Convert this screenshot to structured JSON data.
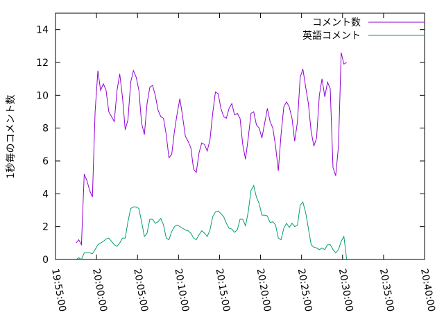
{
  "chart_data": {
    "type": "line",
    "ylabel": "1秒毎のコメント数",
    "ylim": [
      0,
      15
    ],
    "yticks": [
      0,
      2,
      4,
      6,
      8,
      10,
      12,
      14
    ],
    "xlim": [
      "19:55:00",
      "20:40:00"
    ],
    "xticks": [
      "19:55:00",
      "20:00:00",
      "20:05:00",
      "20:10:00",
      "20:15:00",
      "20:20:00",
      "20:25:00",
      "20:30:00",
      "20:35:00",
      "20:40:00"
    ],
    "legend_position": "top-right",
    "grid": false,
    "series": [
      {
        "name": "コメント数",
        "color": "#9400d3",
        "points": [
          [
            "19:57:30",
            1.0
          ],
          [
            "19:57:50",
            1.2
          ],
          [
            "19:58:10",
            0.9
          ],
          [
            "19:58:30",
            5.2
          ],
          [
            "19:58:50",
            4.8
          ],
          [
            "19:59:10",
            4.2
          ],
          [
            "19:59:30",
            3.8
          ],
          [
            "19:59:50",
            9.0
          ],
          [
            "20:00:10",
            11.5
          ],
          [
            "20:00:30",
            10.3
          ],
          [
            "20:00:50",
            10.7
          ],
          [
            "20:01:10",
            10.3
          ],
          [
            "20:01:30",
            9.0
          ],
          [
            "20:01:50",
            8.7
          ],
          [
            "20:02:10",
            8.4
          ],
          [
            "20:02:30",
            10.3
          ],
          [
            "20:02:50",
            11.3
          ],
          [
            "20:03:10",
            9.9
          ],
          [
            "20:03:30",
            7.9
          ],
          [
            "20:03:50",
            8.5
          ],
          [
            "20:04:10",
            10.8
          ],
          [
            "20:04:30",
            11.5
          ],
          [
            "20:04:50",
            11.1
          ],
          [
            "20:05:10",
            10.3
          ],
          [
            "20:05:30",
            8.3
          ],
          [
            "20:05:50",
            7.6
          ],
          [
            "20:06:10",
            9.5
          ],
          [
            "20:06:30",
            10.5
          ],
          [
            "20:06:50",
            10.6
          ],
          [
            "20:07:10",
            10.0
          ],
          [
            "20:07:30",
            9.1
          ],
          [
            "20:07:50",
            8.7
          ],
          [
            "20:08:10",
            8.6
          ],
          [
            "20:08:30",
            7.6
          ],
          [
            "20:08:50",
            6.2
          ],
          [
            "20:09:10",
            6.4
          ],
          [
            "20:09:30",
            7.8
          ],
          [
            "20:09:50",
            8.9
          ],
          [
            "20:10:10",
            9.8
          ],
          [
            "20:10:30",
            8.7
          ],
          [
            "20:10:50",
            7.5
          ],
          [
            "20:11:10",
            7.2
          ],
          [
            "20:11:30",
            6.8
          ],
          [
            "20:11:50",
            5.5
          ],
          [
            "20:12:10",
            5.3
          ],
          [
            "20:12:30",
            6.5
          ],
          [
            "20:12:50",
            7.1
          ],
          [
            "20:13:10",
            7.0
          ],
          [
            "20:13:30",
            6.6
          ],
          [
            "20:13:50",
            7.3
          ],
          [
            "20:14:10",
            8.9
          ],
          [
            "20:14:30",
            10.2
          ],
          [
            "20:14:50",
            10.1
          ],
          [
            "20:15:10",
            9.2
          ],
          [
            "20:15:30",
            8.7
          ],
          [
            "20:15:50",
            8.6
          ],
          [
            "20:16:10",
            9.2
          ],
          [
            "20:16:30",
            9.5
          ],
          [
            "20:16:50",
            8.8
          ],
          [
            "20:17:10",
            8.9
          ],
          [
            "20:17:30",
            8.6
          ],
          [
            "20:17:50",
            7.0
          ],
          [
            "20:18:10",
            6.1
          ],
          [
            "20:18:30",
            7.4
          ],
          [
            "20:18:50",
            8.9
          ],
          [
            "20:19:10",
            9.0
          ],
          [
            "20:19:30",
            8.2
          ],
          [
            "20:19:50",
            8.0
          ],
          [
            "20:20:10",
            7.4
          ],
          [
            "20:20:30",
            8.3
          ],
          [
            "20:20:50",
            9.2
          ],
          [
            "20:21:10",
            8.4
          ],
          [
            "20:21:30",
            8.0
          ],
          [
            "20:21:50",
            6.9
          ],
          [
            "20:22:10",
            5.4
          ],
          [
            "20:22:30",
            7.6
          ],
          [
            "20:22:50",
            9.3
          ],
          [
            "20:23:10",
            9.6
          ],
          [
            "20:23:30",
            9.3
          ],
          [
            "20:23:50",
            8.6
          ],
          [
            "20:24:10",
            7.2
          ],
          [
            "20:24:30",
            8.4
          ],
          [
            "20:24:50",
            11.1
          ],
          [
            "20:25:10",
            11.6
          ],
          [
            "20:25:30",
            10.5
          ],
          [
            "20:25:50",
            9.5
          ],
          [
            "20:26:10",
            7.8
          ],
          [
            "20:26:30",
            6.9
          ],
          [
            "20:26:50",
            7.4
          ],
          [
            "20:27:10",
            10.0
          ],
          [
            "20:27:30",
            11.0
          ],
          [
            "20:27:50",
            9.9
          ],
          [
            "20:28:10",
            10.8
          ],
          [
            "20:28:30",
            10.4
          ],
          [
            "20:28:50",
            5.6
          ],
          [
            "20:29:10",
            5.1
          ],
          [
            "20:29:30",
            6.9
          ],
          [
            "20:29:50",
            12.6
          ],
          [
            "20:30:10",
            11.9
          ],
          [
            "20:30:30",
            12.0
          ]
        ]
      },
      {
        "name": "英語コメント",
        "color": "#009e73",
        "points": [
          [
            "19:57:30",
            0.0
          ],
          [
            "19:57:50",
            0.1
          ],
          [
            "19:58:10",
            0.0
          ],
          [
            "19:58:30",
            0.4
          ],
          [
            "19:58:50",
            0.4
          ],
          [
            "19:59:10",
            0.4
          ],
          [
            "19:59:30",
            0.35
          ],
          [
            "19:59:50",
            0.6
          ],
          [
            "20:00:10",
            0.9
          ],
          [
            "20:00:30",
            1.0
          ],
          [
            "20:00:50",
            1.1
          ],
          [
            "20:01:10",
            1.25
          ],
          [
            "20:01:30",
            1.3
          ],
          [
            "20:01:50",
            1.1
          ],
          [
            "20:02:10",
            0.9
          ],
          [
            "20:02:30",
            0.8
          ],
          [
            "20:02:50",
            1.0
          ],
          [
            "20:03:10",
            1.3
          ],
          [
            "20:03:30",
            1.3
          ],
          [
            "20:03:50",
            2.3
          ],
          [
            "20:04:10",
            3.1
          ],
          [
            "20:04:30",
            3.2
          ],
          [
            "20:04:50",
            3.2
          ],
          [
            "20:05:10",
            3.1
          ],
          [
            "20:05:30",
            2.3
          ],
          [
            "20:05:50",
            1.4
          ],
          [
            "20:06:10",
            1.6
          ],
          [
            "20:06:30",
            2.45
          ],
          [
            "20:06:50",
            2.45
          ],
          [
            "20:07:10",
            2.2
          ],
          [
            "20:07:30",
            2.3
          ],
          [
            "20:07:50",
            2.5
          ],
          [
            "20:08:10",
            2.1
          ],
          [
            "20:08:30",
            1.3
          ],
          [
            "20:08:50",
            1.2
          ],
          [
            "20:09:10",
            1.7
          ],
          [
            "20:09:30",
            2.0
          ],
          [
            "20:09:50",
            2.1
          ],
          [
            "20:10:10",
            2.0
          ],
          [
            "20:10:30",
            1.9
          ],
          [
            "20:10:50",
            1.8
          ],
          [
            "20:11:10",
            1.75
          ],
          [
            "20:11:30",
            1.6
          ],
          [
            "20:11:50",
            1.3
          ],
          [
            "20:12:10",
            1.2
          ],
          [
            "20:12:30",
            1.5
          ],
          [
            "20:12:50",
            1.75
          ],
          [
            "20:13:10",
            1.6
          ],
          [
            "20:13:30",
            1.4
          ],
          [
            "20:13:50",
            1.8
          ],
          [
            "20:14:10",
            2.6
          ],
          [
            "20:14:30",
            2.9
          ],
          [
            "20:14:50",
            2.95
          ],
          [
            "20:15:10",
            2.8
          ],
          [
            "20:15:30",
            2.6
          ],
          [
            "20:15:50",
            2.2
          ],
          [
            "20:16:10",
            1.9
          ],
          [
            "20:16:30",
            1.85
          ],
          [
            "20:16:50",
            1.65
          ],
          [
            "20:17:10",
            1.8
          ],
          [
            "20:17:30",
            2.45
          ],
          [
            "20:17:50",
            2.45
          ],
          [
            "20:18:10",
            2.05
          ],
          [
            "20:18:30",
            2.9
          ],
          [
            "20:18:50",
            4.2
          ],
          [
            "20:19:10",
            4.5
          ],
          [
            "20:19:30",
            3.8
          ],
          [
            "20:19:50",
            3.4
          ],
          [
            "20:20:10",
            2.7
          ],
          [
            "20:20:30",
            2.7
          ],
          [
            "20:20:50",
            2.65
          ],
          [
            "20:21:10",
            2.25
          ],
          [
            "20:21:30",
            2.3
          ],
          [
            "20:21:50",
            2.1
          ],
          [
            "20:22:10",
            1.3
          ],
          [
            "20:22:30",
            1.2
          ],
          [
            "20:22:50",
            1.9
          ],
          [
            "20:23:10",
            2.2
          ],
          [
            "20:23:30",
            1.95
          ],
          [
            "20:23:50",
            2.2
          ],
          [
            "20:24:10",
            2.0
          ],
          [
            "20:24:30",
            2.1
          ],
          [
            "20:24:50",
            3.3
          ],
          [
            "20:25:10",
            3.5
          ],
          [
            "20:25:30",
            2.85
          ],
          [
            "20:25:50",
            1.9
          ],
          [
            "20:26:10",
            0.9
          ],
          [
            "20:26:30",
            0.75
          ],
          [
            "20:26:50",
            0.7
          ],
          [
            "20:27:10",
            0.6
          ],
          [
            "20:27:30",
            0.7
          ],
          [
            "20:27:50",
            0.6
          ],
          [
            "20:28:10",
            0.9
          ],
          [
            "20:28:30",
            0.9
          ],
          [
            "20:28:50",
            0.6
          ],
          [
            "20:29:10",
            0.4
          ],
          [
            "20:29:30",
            0.6
          ],
          [
            "20:29:50",
            1.1
          ],
          [
            "20:30:10",
            1.4
          ],
          [
            "20:30:30",
            0.0
          ]
        ]
      }
    ]
  }
}
